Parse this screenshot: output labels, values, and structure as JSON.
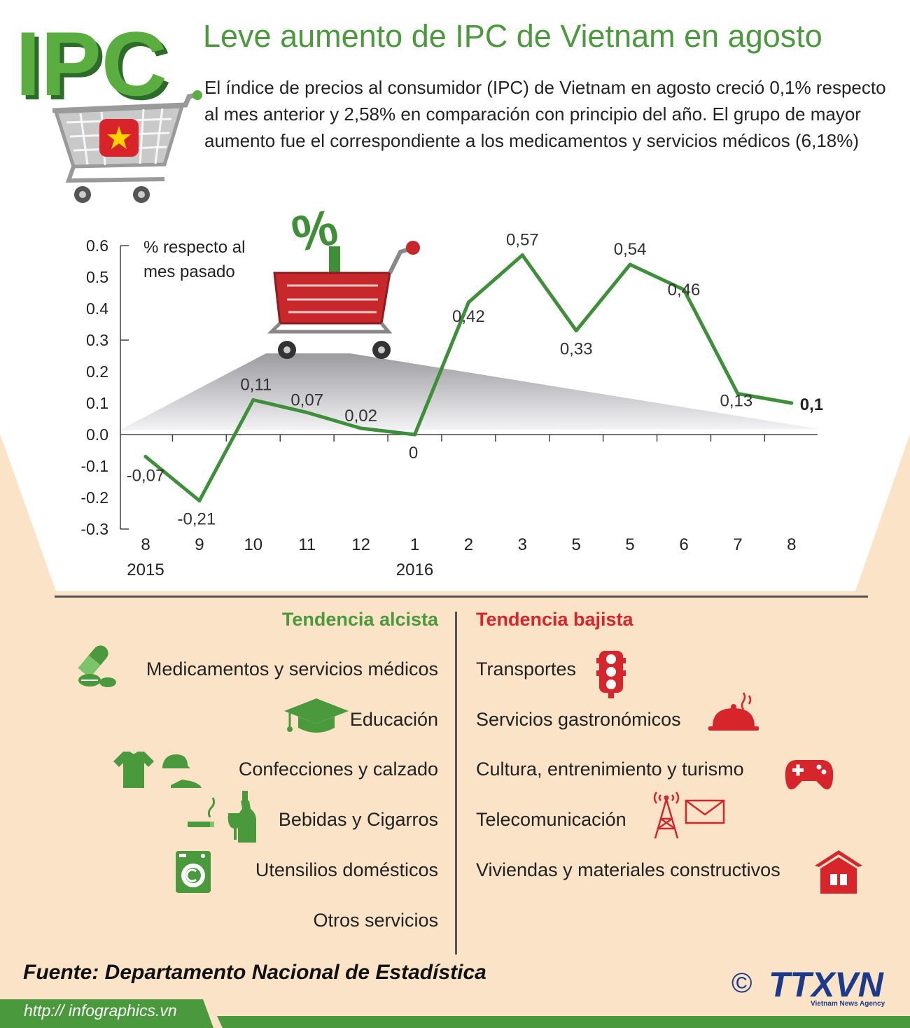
{
  "header": {
    "title": "Leve aumento de IPC de Vietnam en agosto",
    "intro": "El índice de precios al consumidor (IPC) de Vietnam en agosto creció 0,1% respecto al mes anterior y 2,58% en comparación con principio del año. El grupo de mayor aumento fue el correspondiente a los medicamentos y servicios médicos (6,18%)",
    "logo_text": "IPC",
    "logo_icon": "shopping-cart-icon",
    "flag_icon": "vietnam-flag-icon"
  },
  "chart_data": {
    "type": "line",
    "ylabel_lines": [
      "% respecto al",
      "mes pasado"
    ],
    "ylim": [
      -0.3,
      0.6
    ],
    "yticks": [
      "0.6",
      "0.5",
      "0.4",
      "0.3",
      "0.2",
      "0.1",
      "0.0",
      "-0.1",
      "-0.2",
      "-0.3"
    ],
    "categories": [
      "8",
      "9",
      "10",
      "11",
      "12",
      "1",
      "2",
      "3",
      "5",
      "5",
      "6",
      "7",
      "8"
    ],
    "years": [
      {
        "label": "2015",
        "index": 0
      },
      {
        "label": "2016",
        "index": 5
      }
    ],
    "values": [
      -0.07,
      -0.21,
      0.11,
      0.07,
      0.02,
      0,
      0.42,
      0.57,
      0.33,
      0.54,
      0.46,
      0.13,
      0.1
    ],
    "value_labels": [
      "-0,07",
      "-0,21",
      "0,11",
      "0,07",
      "0,02",
      "0",
      "0,42",
      "0,57",
      "0,33",
      "0,54",
      "0,46",
      "0,13",
      "0,1"
    ],
    "line_color": "#3e8f3a",
    "grid": false
  },
  "trends": {
    "up": {
      "title": "Tendencia alcista",
      "color": "#4a9a3d",
      "items": [
        {
          "label": "Medicamentos y servicios médicos",
          "icon": "pill-icon"
        },
        {
          "label": "Educación",
          "icon": "graduation-cap-icon"
        },
        {
          "label": "Confecciones y calzado",
          "icon": "clothing-icon"
        },
        {
          "label": "Bebidas y Cigarros",
          "icon": "bottle-cigarette-icon"
        },
        {
          "label": "Utensilios domésticos",
          "icon": "washing-machine-icon"
        },
        {
          "label": "Otros servicios",
          "icon": ""
        }
      ]
    },
    "down": {
      "title": "Tendencia bajista",
      "color": "#d6262b",
      "items": [
        {
          "label": "Transportes",
          "icon": "traffic-light-icon"
        },
        {
          "label": "Servicios gastronómicos",
          "icon": "food-cloche-icon"
        },
        {
          "label": "Cultura, entrenimiento y turismo",
          "icon": "gamepad-icon"
        },
        {
          "label": "Telecomunicación",
          "icon": "antenna-envelope-icon"
        },
        {
          "label": "Viviendas y materiales constructivos",
          "icon": "house-icon"
        }
      ]
    }
  },
  "footer": {
    "source": "Fuente: Departamento Nacional de Estadística",
    "url": "http:// infographics.vn",
    "copyright": "©",
    "brand": "TTXVN",
    "brand_sub": "Vietnam News Agency"
  }
}
